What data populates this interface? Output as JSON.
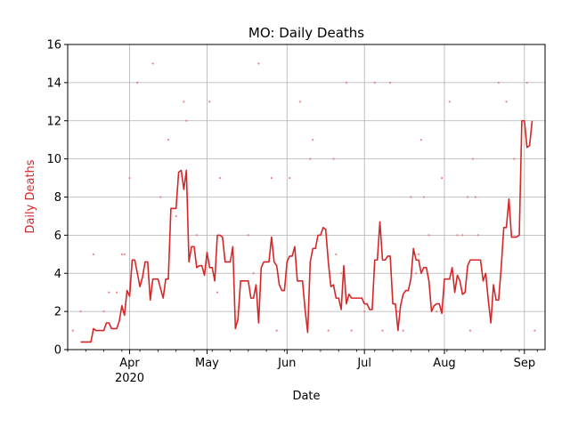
{
  "chart_data": {
    "type": "line",
    "title": "MO: Daily Deaths",
    "xlabel": "Date",
    "ylabel": "Daily Deaths",
    "ylim": [
      0,
      16
    ],
    "y_ticks": [
      0,
      2,
      4,
      6,
      8,
      10,
      12,
      14,
      16
    ],
    "x_range": [
      "2020-03-08",
      "2020-09-09"
    ],
    "x_ticks": [
      {
        "date": "2020-04-01",
        "label": "Apr",
        "sublabel": "2020"
      },
      {
        "date": "2020-05-01",
        "label": "May",
        "sublabel": ""
      },
      {
        "date": "2020-06-01",
        "label": "Jun",
        "sublabel": ""
      },
      {
        "date": "2020-07-01",
        "label": "Jul",
        "sublabel": ""
      },
      {
        "date": "2020-08-01",
        "label": "Aug",
        "sublabel": ""
      },
      {
        "date": "2020-09-01",
        "label": "Sep",
        "sublabel": ""
      }
    ],
    "grid": true,
    "colors": {
      "line": "#d62728",
      "points": "#f08080",
      "grid": "#b0b0b0",
      "ylabel": "#d62728"
    },
    "series": [
      {
        "style": "line",
        "points": [
          [
            "2020-03-13",
            0.4
          ],
          [
            "2020-03-14",
            0.4
          ],
          [
            "2020-03-15",
            0.4
          ],
          [
            "2020-03-16",
            0.4
          ],
          [
            "2020-03-17",
            0.4
          ],
          [
            "2020-03-18",
            1.1
          ],
          [
            "2020-03-19",
            1.0
          ],
          [
            "2020-03-20",
            1.0
          ],
          [
            "2020-03-21",
            1.0
          ],
          [
            "2020-03-22",
            1.0
          ],
          [
            "2020-03-23",
            1.4
          ],
          [
            "2020-03-24",
            1.4
          ],
          [
            "2020-03-25",
            1.1
          ],
          [
            "2020-03-26",
            1.1
          ],
          [
            "2020-03-27",
            1.1
          ],
          [
            "2020-03-28",
            1.5
          ],
          [
            "2020-03-29",
            2.3
          ],
          [
            "2020-03-30",
            1.8
          ],
          [
            "2020-03-31",
            3.1
          ],
          [
            "2020-04-01",
            2.8
          ],
          [
            "2020-04-02",
            4.7
          ],
          [
            "2020-04-03",
            4.7
          ],
          [
            "2020-04-04",
            4.0
          ],
          [
            "2020-04-05",
            3.3
          ],
          [
            "2020-04-06",
            3.8
          ],
          [
            "2020-04-07",
            4.6
          ],
          [
            "2020-04-08",
            4.6
          ],
          [
            "2020-04-09",
            2.6
          ],
          [
            "2020-04-10",
            3.7
          ],
          [
            "2020-04-11",
            3.7
          ],
          [
            "2020-04-12",
            3.7
          ],
          [
            "2020-04-13",
            3.2
          ],
          [
            "2020-04-14",
            2.7
          ],
          [
            "2020-04-15",
            3.7
          ],
          [
            "2020-04-16",
            3.7
          ],
          [
            "2020-04-17",
            7.4
          ],
          [
            "2020-04-18",
            7.4
          ],
          [
            "2020-04-19",
            7.4
          ],
          [
            "2020-04-20",
            9.3
          ],
          [
            "2020-04-21",
            9.4
          ],
          [
            "2020-04-22",
            8.4
          ],
          [
            "2020-04-23",
            9.4
          ],
          [
            "2020-04-24",
            4.6
          ],
          [
            "2020-04-25",
            5.4
          ],
          [
            "2020-04-26",
            5.4
          ],
          [
            "2020-04-27",
            4.3
          ],
          [
            "2020-04-28",
            4.4
          ],
          [
            "2020-04-29",
            4.4
          ],
          [
            "2020-04-30",
            3.9
          ],
          [
            "2020-05-01",
            5.1
          ],
          [
            "2020-05-02",
            4.3
          ],
          [
            "2020-05-03",
            4.3
          ],
          [
            "2020-05-04",
            3.6
          ],
          [
            "2020-05-05",
            6.0
          ],
          [
            "2020-05-06",
            6.0
          ],
          [
            "2020-05-07",
            5.9
          ],
          [
            "2020-05-08",
            4.6
          ],
          [
            "2020-05-09",
            4.6
          ],
          [
            "2020-05-10",
            4.6
          ],
          [
            "2020-05-11",
            5.4
          ],
          [
            "2020-05-12",
            1.1
          ],
          [
            "2020-05-13",
            1.6
          ],
          [
            "2020-05-14",
            3.6
          ],
          [
            "2020-05-15",
            3.6
          ],
          [
            "2020-05-16",
            3.6
          ],
          [
            "2020-05-17",
            3.6
          ],
          [
            "2020-05-18",
            2.7
          ],
          [
            "2020-05-19",
            2.7
          ],
          [
            "2020-05-20",
            3.4
          ],
          [
            "2020-05-21",
            1.4
          ],
          [
            "2020-05-22",
            4.3
          ],
          [
            "2020-05-23",
            4.6
          ],
          [
            "2020-05-24",
            4.6
          ],
          [
            "2020-05-25",
            4.6
          ],
          [
            "2020-05-26",
            5.9
          ],
          [
            "2020-05-27",
            4.6
          ],
          [
            "2020-05-28",
            4.4
          ],
          [
            "2020-05-29",
            3.4
          ],
          [
            "2020-05-30",
            3.1
          ],
          [
            "2020-05-31",
            3.1
          ],
          [
            "2020-06-01",
            4.6
          ],
          [
            "2020-06-02",
            4.9
          ],
          [
            "2020-06-03",
            4.9
          ],
          [
            "2020-06-04",
            5.4
          ],
          [
            "2020-06-05",
            3.6
          ],
          [
            "2020-06-06",
            3.6
          ],
          [
            "2020-06-07",
            3.6
          ],
          [
            "2020-06-08",
            2.1
          ],
          [
            "2020-06-09",
            0.9
          ],
          [
            "2020-06-10",
            4.6
          ],
          [
            "2020-06-11",
            5.3
          ],
          [
            "2020-06-12",
            5.3
          ],
          [
            "2020-06-13",
            6.0
          ],
          [
            "2020-06-14",
            6.0
          ],
          [
            "2020-06-15",
            6.4
          ],
          [
            "2020-06-16",
            6.3
          ],
          [
            "2020-06-17",
            4.6
          ],
          [
            "2020-06-18",
            3.3
          ],
          [
            "2020-06-19",
            3.4
          ],
          [
            "2020-06-20",
            2.7
          ],
          [
            "2020-06-21",
            2.7
          ],
          [
            "2020-06-22",
            2.1
          ],
          [
            "2020-06-23",
            4.4
          ],
          [
            "2020-06-24",
            2.4
          ],
          [
            "2020-06-25",
            2.9
          ],
          [
            "2020-06-26",
            2.7
          ],
          [
            "2020-06-27",
            2.7
          ],
          [
            "2020-06-28",
            2.7
          ],
          [
            "2020-06-29",
            2.7
          ],
          [
            "2020-06-30",
            2.7
          ],
          [
            "2020-07-01",
            2.4
          ],
          [
            "2020-07-02",
            2.4
          ],
          [
            "2020-07-03",
            2.1
          ],
          [
            "2020-07-04",
            2.1
          ],
          [
            "2020-07-05",
            4.7
          ],
          [
            "2020-07-06",
            4.7
          ],
          [
            "2020-07-07",
            6.7
          ],
          [
            "2020-07-08",
            4.7
          ],
          [
            "2020-07-09",
            4.7
          ],
          [
            "2020-07-10",
            4.9
          ],
          [
            "2020-07-11",
            4.9
          ],
          [
            "2020-07-12",
            2.4
          ],
          [
            "2020-07-13",
            2.4
          ],
          [
            "2020-07-14",
            1.0
          ],
          [
            "2020-07-15",
            2.3
          ],
          [
            "2020-07-16",
            2.9
          ],
          [
            "2020-07-17",
            3.1
          ],
          [
            "2020-07-18",
            3.1
          ],
          [
            "2020-07-19",
            3.7
          ],
          [
            "2020-07-20",
            5.3
          ],
          [
            "2020-07-21",
            4.7
          ],
          [
            "2020-07-22",
            4.7
          ],
          [
            "2020-07-23",
            4.0
          ],
          [
            "2020-07-24",
            4.3
          ],
          [
            "2020-07-25",
            4.3
          ],
          [
            "2020-07-26",
            3.6
          ],
          [
            "2020-07-27",
            2.0
          ],
          [
            "2020-07-28",
            2.3
          ],
          [
            "2020-07-29",
            2.4
          ],
          [
            "2020-07-30",
            2.4
          ],
          [
            "2020-07-31",
            1.9
          ],
          [
            "2020-08-01",
            3.7
          ],
          [
            "2020-08-02",
            3.7
          ],
          [
            "2020-08-03",
            3.7
          ],
          [
            "2020-08-04",
            4.3
          ],
          [
            "2020-08-05",
            3.0
          ],
          [
            "2020-08-06",
            3.9
          ],
          [
            "2020-08-07",
            3.6
          ],
          [
            "2020-08-08",
            2.9
          ],
          [
            "2020-08-09",
            3.0
          ],
          [
            "2020-08-10",
            4.4
          ],
          [
            "2020-08-11",
            4.7
          ],
          [
            "2020-08-12",
            4.7
          ],
          [
            "2020-08-13",
            4.7
          ],
          [
            "2020-08-14",
            4.7
          ],
          [
            "2020-08-15",
            4.7
          ],
          [
            "2020-08-16",
            3.6
          ],
          [
            "2020-08-17",
            4.0
          ],
          [
            "2020-08-18",
            2.6
          ],
          [
            "2020-08-19",
            1.4
          ],
          [
            "2020-08-20",
            3.4
          ],
          [
            "2020-08-21",
            2.6
          ],
          [
            "2020-08-22",
            2.6
          ],
          [
            "2020-08-23",
            4.3
          ],
          [
            "2020-08-24",
            6.4
          ],
          [
            "2020-08-25",
            6.4
          ],
          [
            "2020-08-26",
            7.9
          ],
          [
            "2020-08-27",
            5.9
          ],
          [
            "2020-08-28",
            5.9
          ],
          [
            "2020-08-29",
            5.9
          ],
          [
            "2020-08-30",
            6.0
          ],
          [
            "2020-08-31",
            12.0
          ],
          [
            "2020-09-01",
            12.0
          ],
          [
            "2020-09-02",
            10.6
          ],
          [
            "2020-09-03",
            10.7
          ],
          [
            "2020-09-04",
            12.0
          ]
        ]
      },
      {
        "style": "points",
        "points": [
          [
            "2020-03-10",
            1
          ],
          [
            "2020-03-13",
            2
          ],
          [
            "2020-03-18",
            5
          ],
          [
            "2020-03-22",
            2
          ],
          [
            "2020-03-24",
            3
          ],
          [
            "2020-03-27",
            3
          ],
          [
            "2020-03-29",
            5
          ],
          [
            "2020-03-30",
            5
          ],
          [
            "2020-04-01",
            9
          ],
          [
            "2020-04-04",
            14
          ],
          [
            "2020-04-09",
            3
          ],
          [
            "2020-04-10",
            15
          ],
          [
            "2020-04-13",
            8
          ],
          [
            "2020-04-16",
            11
          ],
          [
            "2020-04-19",
            7
          ],
          [
            "2020-04-22",
            13
          ],
          [
            "2020-04-23",
            12
          ],
          [
            "2020-04-27",
            6
          ],
          [
            "2020-05-02",
            13
          ],
          [
            "2020-05-05",
            3
          ],
          [
            "2020-05-06",
            9
          ],
          [
            "2020-05-13",
            2
          ],
          [
            "2020-05-17",
            6
          ],
          [
            "2020-05-19",
            4
          ],
          [
            "2020-05-21",
            15
          ],
          [
            "2020-05-26",
            9
          ],
          [
            "2020-05-28",
            1
          ],
          [
            "2020-06-02",
            9
          ],
          [
            "2020-06-06",
            13
          ],
          [
            "2020-06-10",
            10
          ],
          [
            "2020-06-11",
            11
          ],
          [
            "2020-06-17",
            1
          ],
          [
            "2020-06-19",
            10
          ],
          [
            "2020-06-20",
            5
          ],
          [
            "2020-06-22",
            4
          ],
          [
            "2020-06-24",
            14
          ],
          [
            "2020-06-26",
            1
          ],
          [
            "2020-07-01",
            2
          ],
          [
            "2020-07-05",
            14
          ],
          [
            "2020-07-08",
            1
          ],
          [
            "2020-07-11",
            14
          ],
          [
            "2020-07-14",
            2
          ],
          [
            "2020-07-16",
            1
          ],
          [
            "2020-07-19",
            8
          ],
          [
            "2020-07-20",
            5
          ],
          [
            "2020-07-21",
            4
          ],
          [
            "2020-07-22",
            5
          ],
          [
            "2020-07-23",
            11
          ],
          [
            "2020-07-24",
            8
          ],
          [
            "2020-07-26",
            6
          ],
          [
            "2020-07-29",
            2
          ],
          [
            "2020-07-31",
            9
          ],
          [
            "2020-08-03",
            13
          ],
          [
            "2020-08-06",
            6
          ],
          [
            "2020-08-08",
            6
          ],
          [
            "2020-08-10",
            8
          ],
          [
            "2020-08-11",
            1
          ],
          [
            "2020-08-12",
            10
          ],
          [
            "2020-08-13",
            8
          ],
          [
            "2020-08-14",
            6
          ],
          [
            "2020-08-22",
            14
          ],
          [
            "2020-08-25",
            13
          ],
          [
            "2020-08-28",
            10
          ],
          [
            "2020-09-02",
            14
          ],
          [
            "2020-09-05",
            1
          ]
        ]
      }
    ]
  }
}
